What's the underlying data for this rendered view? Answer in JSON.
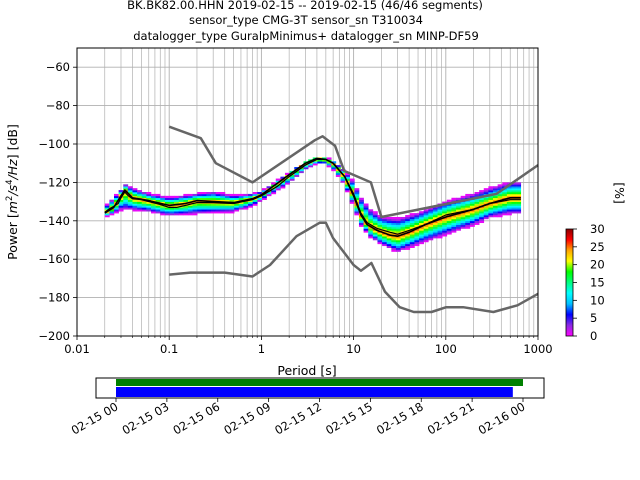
{
  "title_lines": [
    "BK.BK82.00.HHN   2019-02-15 -- 2019-02-15  (46/46 segments)",
    "sensor_type CMG-3T sensor_sn T310034",
    "datalogger_type GuralpMinimus+ datalogger_sn MINP-DF59"
  ],
  "chart_data": {
    "type": "heatmap",
    "xlabel": "Period [s]",
    "ylabel_parts": [
      "Power [",
      "m",
      "2",
      "/s",
      "4",
      "/Hz",
      "] [dB]"
    ],
    "x_scale": "log",
    "xlim": [
      0.01,
      1000
    ],
    "ylim": [
      -200,
      -50
    ],
    "x_ticks": [
      0.01,
      0.1,
      1,
      10,
      100,
      1000
    ],
    "x_tick_labels": [
      "0.01",
      "0.1",
      "1",
      "10",
      "100",
      "1000"
    ],
    "y_ticks": [
      -200,
      -180,
      -160,
      -140,
      -120,
      -100,
      -80,
      -60
    ],
    "y_tick_labels": [
      "−200",
      "−180",
      "−160",
      "−140",
      "−120",
      "−100",
      "−80",
      "−60"
    ],
    "grid": true,
    "colorbar": {
      "label": "[%]",
      "ticks": [
        0,
        5,
        10,
        15,
        20,
        25,
        30
      ],
      "range": [
        0,
        30
      ],
      "colormap": [
        "#ff00ff",
        "#8a2be2",
        "#0000ff",
        "#00bfff",
        "#00ffff",
        "#00ff80",
        "#00ff00",
        "#ffff00",
        "#ffa500",
        "#ff0000",
        "#8b0000"
      ]
    },
    "noise_model_high": [
      [
        0.1,
        -91
      ],
      [
        0.22,
        -97
      ],
      [
        0.32,
        -110
      ],
      [
        0.8,
        -120
      ],
      [
        3.8,
        -98
      ],
      [
        4.6,
        -96
      ],
      [
        6.3,
        -101
      ],
      [
        7.9,
        -114
      ],
      [
        15.4,
        -120
      ],
      [
        20,
        -138
      ],
      [
        354.8,
        -126
      ],
      [
        1000,
        -111
      ]
    ],
    "noise_model_low": [
      [
        0.1,
        -168
      ],
      [
        0.17,
        -167
      ],
      [
        0.4,
        -167
      ],
      [
        0.8,
        -169
      ],
      [
        1.24,
        -163
      ],
      [
        2.4,
        -148
      ],
      [
        4.3,
        -141
      ],
      [
        5,
        -141
      ],
      [
        6,
        -149
      ],
      [
        10,
        -163
      ],
      [
        12,
        -166
      ],
      [
        15.6,
        -162
      ],
      [
        21.9,
        -177
      ],
      [
        31.6,
        -185
      ],
      [
        45,
        -187.5
      ],
      [
        70,
        -187.5
      ],
      [
        101,
        -185
      ],
      [
        154,
        -185
      ],
      [
        328,
        -187.5
      ],
      [
        600,
        -184
      ],
      [
        1000,
        -178
      ]
    ],
    "mean_curve": [
      [
        0.02,
        -135.5
      ],
      [
        0.022,
        -134
      ],
      [
        0.025,
        -132.5
      ],
      [
        0.028,
        -131
      ],
      [
        0.03,
        -128
      ],
      [
        0.033,
        -125
      ],
      [
        0.036,
        -127
      ],
      [
        0.04,
        -128.5
      ],
      [
        0.05,
        -129
      ],
      [
        0.06,
        -130
      ],
      [
        0.08,
        -131.5
      ],
      [
        0.1,
        -133
      ],
      [
        0.12,
        -133
      ],
      [
        0.15,
        -132
      ],
      [
        0.2,
        -130.5
      ],
      [
        0.3,
        -130.5
      ],
      [
        0.5,
        -131
      ],
      [
        0.8,
        -129
      ],
      [
        1,
        -127
      ],
      [
        1.5,
        -122
      ],
      [
        2,
        -117
      ],
      [
        3,
        -111
      ],
      [
        4,
        -108
      ],
      [
        5,
        -108
      ],
      [
        6,
        -110
      ],
      [
        8,
        -117
      ],
      [
        10,
        -126
      ],
      [
        12,
        -136
      ],
      [
        14,
        -141
      ],
      [
        18,
        -144
      ],
      [
        25,
        -146
      ],
      [
        30,
        -147
      ],
      [
        40,
        -145
      ],
      [
        60,
        -142
      ],
      [
        100,
        -137
      ],
      [
        200,
        -134
      ],
      [
        300,
        -131
      ],
      [
        500,
        -129
      ],
      [
        650,
        -129
      ]
    ],
    "mode_curve": [
      [
        0.02,
        -136
      ],
      [
        0.025,
        -133
      ],
      [
        0.03,
        -127
      ],
      [
        0.033,
        -124
      ],
      [
        0.04,
        -128
      ],
      [
        0.06,
        -129.5
      ],
      [
        0.1,
        -132
      ],
      [
        0.15,
        -131
      ],
      [
        0.2,
        -129.5
      ],
      [
        0.3,
        -130
      ],
      [
        0.5,
        -130.5
      ],
      [
        0.8,
        -128.5
      ],
      [
        1,
        -126.5
      ],
      [
        2,
        -116
      ],
      [
        3,
        -110
      ],
      [
        4,
        -107.5
      ],
      [
        5,
        -108
      ],
      [
        6,
        -110
      ],
      [
        8,
        -117
      ],
      [
        10,
        -127
      ],
      [
        12,
        -137
      ],
      [
        14,
        -142
      ],
      [
        18,
        -145
      ],
      [
        25,
        -147.5
      ],
      [
        30,
        -148
      ],
      [
        40,
        -146
      ],
      [
        60,
        -142
      ],
      [
        100,
        -138
      ],
      [
        200,
        -134
      ],
      [
        300,
        -131
      ],
      [
        500,
        -128
      ],
      [
        650,
        -128
      ]
    ],
    "spread_upper": [
      [
        0.02,
        -133
      ],
      [
        0.03,
        -124
      ],
      [
        0.033,
        -121
      ],
      [
        0.04,
        -123
      ],
      [
        0.06,
        -126
      ],
      [
        0.1,
        -128
      ],
      [
        0.2,
        -126
      ],
      [
        0.3,
        -125
      ],
      [
        0.5,
        -127
      ],
      [
        0.8,
        -126
      ],
      [
        1,
        -125
      ],
      [
        2,
        -115
      ],
      [
        3,
        -110
      ],
      [
        4,
        -107
      ],
      [
        5,
        -107
      ],
      [
        6,
        -109
      ],
      [
        8,
        -114
      ],
      [
        10,
        -120
      ],
      [
        12,
        -128
      ],
      [
        15,
        -134
      ],
      [
        20,
        -138
      ],
      [
        30,
        -139
      ],
      [
        50,
        -136
      ],
      [
        100,
        -130
      ],
      [
        200,
        -126
      ],
      [
        300,
        -123
      ],
      [
        500,
        -120
      ],
      [
        650,
        -120
      ]
    ],
    "spread_lower": [
      [
        0.02,
        -138
      ],
      [
        0.03,
        -134
      ],
      [
        0.04,
        -134
      ],
      [
        0.06,
        -135
      ],
      [
        0.1,
        -137
      ],
      [
        0.2,
        -136
      ],
      [
        0.3,
        -135.5
      ],
      [
        0.5,
        -135
      ],
      [
        0.8,
        -132
      ],
      [
        1,
        -129
      ],
      [
        2,
        -120
      ],
      [
        3,
        -113
      ],
      [
        4,
        -110
      ],
      [
        5,
        -110
      ],
      [
        6,
        -113
      ],
      [
        8,
        -121
      ],
      [
        10,
        -132
      ],
      [
        12,
        -142
      ],
      [
        15,
        -148
      ],
      [
        20,
        -152
      ],
      [
        30,
        -156
      ],
      [
        50,
        -152
      ],
      [
        100,
        -147
      ],
      [
        200,
        -142
      ],
      [
        300,
        -138
      ],
      [
        500,
        -136
      ],
      [
        650,
        -136
      ]
    ]
  },
  "timeline": {
    "ticks": [
      "02-15 00",
      "02-15 03",
      "02-15 06",
      "02-15 09",
      "02-15 12",
      "02-15 15",
      "02-15 18",
      "02-15 21",
      "02-16 00"
    ],
    "green_coverage": [
      0,
      24
    ],
    "blue_coverage": [
      0,
      23.4
    ],
    "green_color": "#008000",
    "blue_color": "#0000ff"
  }
}
